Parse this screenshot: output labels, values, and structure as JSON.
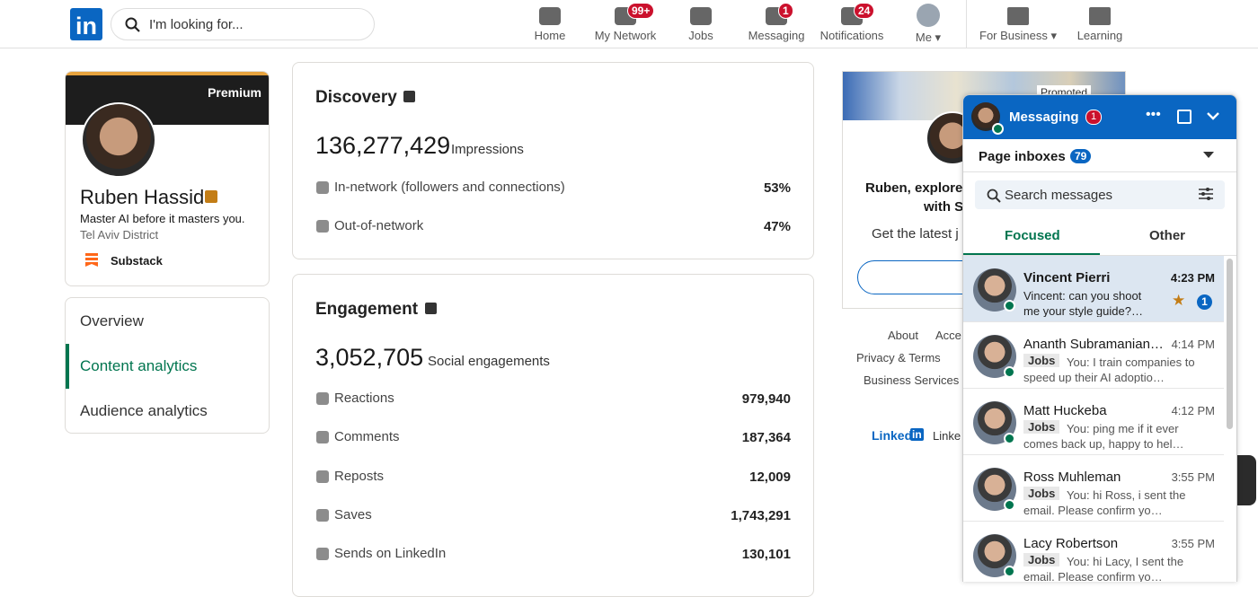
{
  "nav": {
    "logo": "in",
    "search_placeholder": "I'm looking for...",
    "items": [
      {
        "label": "Home"
      },
      {
        "label": "My Network",
        "badge": "99+"
      },
      {
        "label": "Jobs"
      },
      {
        "label": "Messaging",
        "badge": "1"
      },
      {
        "label": "Notifications",
        "badge": "24"
      },
      {
        "label": "Me"
      },
      {
        "label": "For Business"
      },
      {
        "label": "Learning"
      }
    ]
  },
  "profile": {
    "banner": "Premium",
    "name": "Ruben Hassid",
    "headline": "Master AI before it masters you.",
    "location": "Tel Aviv District",
    "link": "Substack"
  },
  "sidebar": {
    "items": [
      "Overview",
      "Content analytics",
      "Audience analytics"
    ]
  },
  "discovery": {
    "title": "Discovery",
    "total": "136,277,429",
    "total_label": "Impressions",
    "rows": [
      {
        "label": "In-network (followers and connections)",
        "value": "53%"
      },
      {
        "label": "Out-of-network",
        "value": "47%"
      }
    ]
  },
  "engagement": {
    "title": "Engagement",
    "total": "3,052,705",
    "total_label": "Social engagements",
    "rows": [
      {
        "label": "Reactions",
        "value": "979,940"
      },
      {
        "label": "Comments",
        "value": "187,364"
      },
      {
        "label": "Reposts",
        "value": "12,009"
      },
      {
        "label": "Saves",
        "value": "1,743,291"
      },
      {
        "label": "Sends on LinkedIn",
        "value": "130,101"
      }
    ]
  },
  "ad": {
    "label": "Promoted",
    "line1": "Ruben, explore",
    "line2": "with S",
    "sub": "Get the latest j"
  },
  "footer": {
    "about": "About",
    "access": "Acce",
    "privacy": "Privacy & Terms",
    "business": "Business Services",
    "logo_text": "Linked",
    "logo_box": "in",
    "corp": "Linke"
  },
  "messaging": {
    "title": "Messaging",
    "badge": "1",
    "inbox": "Page inboxes",
    "inbox_count": "79",
    "search": "Search messages",
    "tabs": [
      "Focused",
      "Other"
    ],
    "conversations": [
      {
        "name": "Vincent Pierri",
        "time": "4:23 PM",
        "preview": "Vincent: can you shoot me your style guide?…",
        "unread": "1"
      },
      {
        "name": "Ananth Subramanian…",
        "time": "4:14 PM",
        "tag": "Jobs",
        "preview": "You: I train companies to speed up their AI adoptio…"
      },
      {
        "name": "Matt Huckeba",
        "time": "4:12 PM",
        "tag": "Jobs",
        "preview": "You: ping me if it ever comes back up, happy to hel…"
      },
      {
        "name": "Ross Muhleman",
        "time": "3:55 PM",
        "tag": "Jobs",
        "preview": "You: hi Ross, i sent the email. Please confirm yo…"
      },
      {
        "name": "Lacy Robertson",
        "time": "3:55 PM",
        "tag": "Jobs",
        "preview": "You: hi Lacy, I sent the email. Please confirm yo…"
      }
    ]
  }
}
